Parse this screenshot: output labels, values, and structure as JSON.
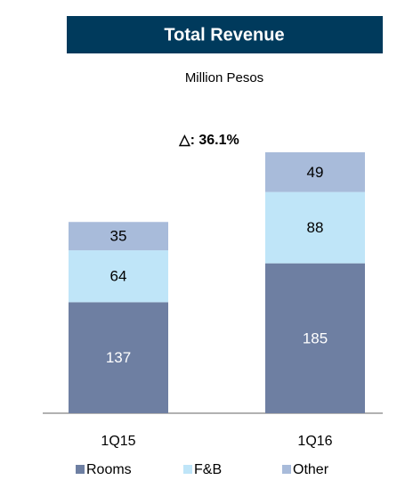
{
  "chart_data": {
    "type": "stacked_bar",
    "title": "Total Revenue",
    "subtitle": "Million Pesos",
    "annotation": "△: 36.1%",
    "categories": [
      "1Q15",
      "1Q16"
    ],
    "series": [
      {
        "name": "Rooms",
        "color": "#6e7fa2",
        "values": [
          137,
          185
        ]
      },
      {
        "name": "F&B",
        "color": "#bfe5f8",
        "values": [
          64,
          88
        ]
      },
      {
        "name": "Other",
        "color": "#a8bbda",
        "values": [
          35,
          49
        ]
      }
    ],
    "legend": "bottom"
  }
}
